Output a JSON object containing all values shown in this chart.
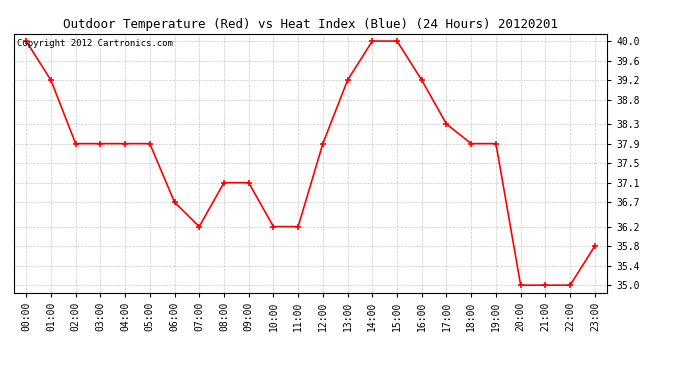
{
  "title": "Outdoor Temperature (Red) vs Heat Index (Blue) (24 Hours) 20120201",
  "copyright_text": "Copyright 2012 Cartronics.com",
  "x_labels": [
    "00:00",
    "01:00",
    "02:00",
    "03:00",
    "04:00",
    "05:00",
    "06:00",
    "07:00",
    "08:00",
    "09:00",
    "10:00",
    "11:00",
    "12:00",
    "13:00",
    "14:00",
    "15:00",
    "16:00",
    "17:00",
    "18:00",
    "19:00",
    "20:00",
    "21:00",
    "22:00",
    "23:00"
  ],
  "temp_values": [
    40.0,
    39.2,
    37.9,
    37.9,
    37.9,
    37.9,
    36.7,
    36.2,
    37.1,
    37.1,
    36.2,
    36.2,
    37.9,
    39.2,
    40.0,
    40.0,
    39.2,
    38.3,
    37.9,
    37.9,
    35.0,
    35.0,
    35.0,
    35.8
  ],
  "line_color_temp": "#FF0000",
  "bg_color": "#FFFFFF",
  "grid_color": "#C8C8C8",
  "marker": "+",
  "marker_size": 5,
  "marker_linewidth": 1.2,
  "line_width": 1.2,
  "ylim": [
    34.85,
    40.15
  ],
  "yticks": [
    35.0,
    35.4,
    35.8,
    36.2,
    36.7,
    37.1,
    37.5,
    37.9,
    38.3,
    38.8,
    39.2,
    39.6,
    40.0
  ],
  "title_fontsize": 9,
  "tick_fontsize": 7,
  "copyright_fontsize": 6.5
}
